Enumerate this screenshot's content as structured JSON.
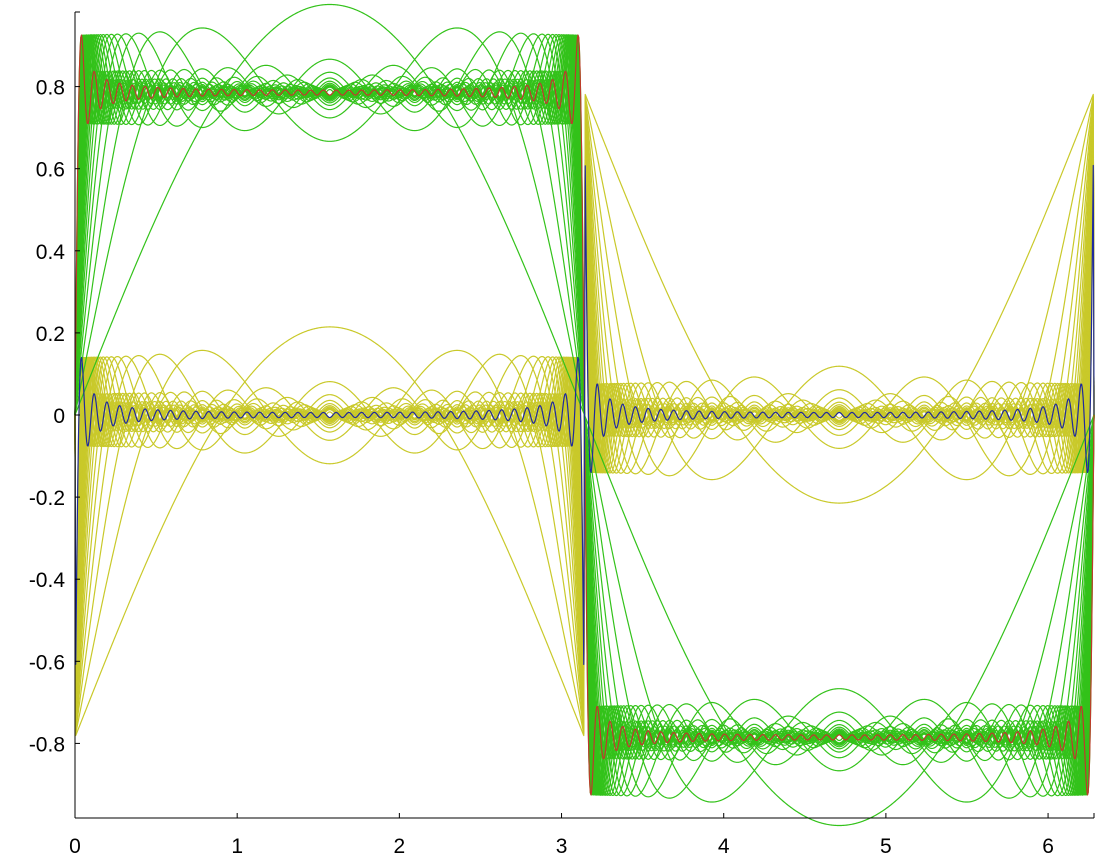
{
  "chart_data": {
    "type": "line",
    "title": "",
    "xlabel": "",
    "ylabel": "",
    "xlim": [
      0,
      6.2832
    ],
    "ylim": [
      -0.9817,
      0.9817
    ],
    "grid": false,
    "legend": "none",
    "x_ticks": [
      "0",
      "1",
      "2",
      "3",
      "4",
      "5",
      "6"
    ],
    "y_ticks": [
      "0.8",
      "0.6",
      "0.4",
      "0.2",
      "0",
      "-0.2",
      "-0.4",
      "-0.6",
      "-0.8"
    ],
    "x_tick_values": [
      0,
      1,
      2,
      3,
      4,
      5,
      6
    ],
    "y_tick_values": [
      0.8,
      0.6,
      0.4,
      0.2,
      0,
      -0.2,
      -0.4,
      -0.6,
      -0.8
    ],
    "family_description": "Partial Fourier-series sums of a square wave of height ±π/4 with increasing numbers of odd harmonics (green), their error terms (yellow), the highest-order partial sum (red) and its residual (blue).",
    "harmonic_counts": [
      1,
      2,
      3,
      4,
      5,
      6,
      7,
      8,
      9,
      10,
      11,
      12,
      13,
      14,
      15,
      16,
      17,
      18,
      19,
      20,
      22,
      24,
      26,
      28,
      30,
      33,
      36,
      40
    ],
    "final_harmonic_count": 40,
    "square_wave_amplitude": 0.7854,
    "colors": {
      "partial_sums": "#33c21a",
      "errors": "#c9c92a",
      "final_sum": "#c0392b",
      "final_error": "#1f2a9e",
      "axis": "#000000"
    }
  }
}
